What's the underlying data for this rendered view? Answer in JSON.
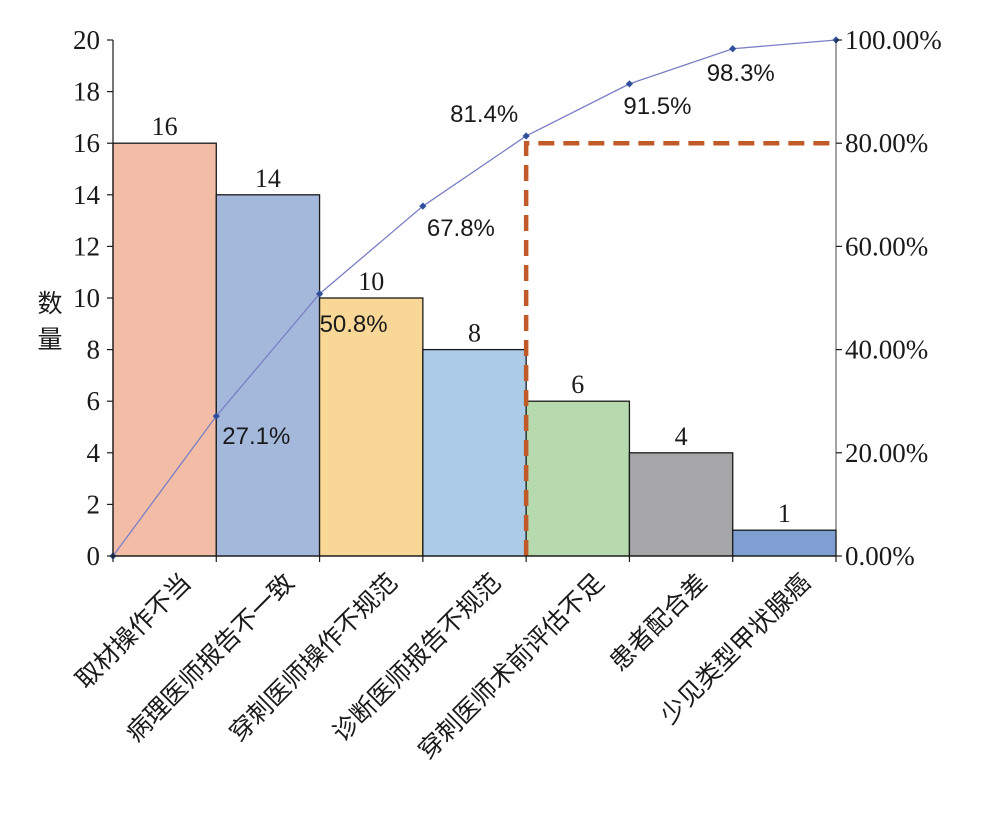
{
  "chart_data": {
    "type": "bar",
    "categories": [
      "取材操作不当",
      "病理医师报告不一致",
      "穿刺医师操作不规范",
      "诊断医师报告不规范",
      "穿刺医师术前评估不足",
      "患者配合差",
      "少见类型甲状腺癌"
    ],
    "values": [
      16,
      14,
      10,
      8,
      6,
      4,
      1
    ],
    "bar_colors": [
      "#f2bca6",
      "#a4b8db",
      "#f8d797",
      "#abcbe6",
      "#b7d9ae",
      "#a6a5a7",
      "#7f9fd3"
    ],
    "value_labels": [
      "16",
      "14",
      "10",
      "8",
      "6",
      "4",
      "1"
    ],
    "ylabel": "数量",
    "ylim": [
      0,
      20
    ],
    "yticks": [
      0,
      2,
      4,
      6,
      8,
      10,
      12,
      14,
      16,
      18,
      20
    ],
    "y2lim": [
      0,
      100
    ],
    "y2ticks": [
      0,
      20,
      40,
      60,
      80,
      100
    ],
    "y2tick_labels": [
      "0.00%",
      "20.00%",
      "40.00%",
      "60.00%",
      "80.00%",
      "100.00%"
    ],
    "cumulative": {
      "x": [
        0,
        1,
        2,
        3,
        4,
        5,
        6,
        7
      ],
      "values": [
        0,
        27.1,
        50.8,
        67.8,
        81.4,
        91.5,
        98.3,
        100
      ],
      "labels": [
        "",
        "27.1%",
        "50.8%",
        "67.8%",
        "81.4%",
        "91.5%",
        "98.3%",
        ""
      ],
      "line_color": "#7a7fc4",
      "marker_color": "#2f4f9a"
    },
    "threshold": {
      "value": 80,
      "x_boundary": 4,
      "color": "#c05a28",
      "style": "dashed"
    },
    "grid": false,
    "legend": "none"
  }
}
